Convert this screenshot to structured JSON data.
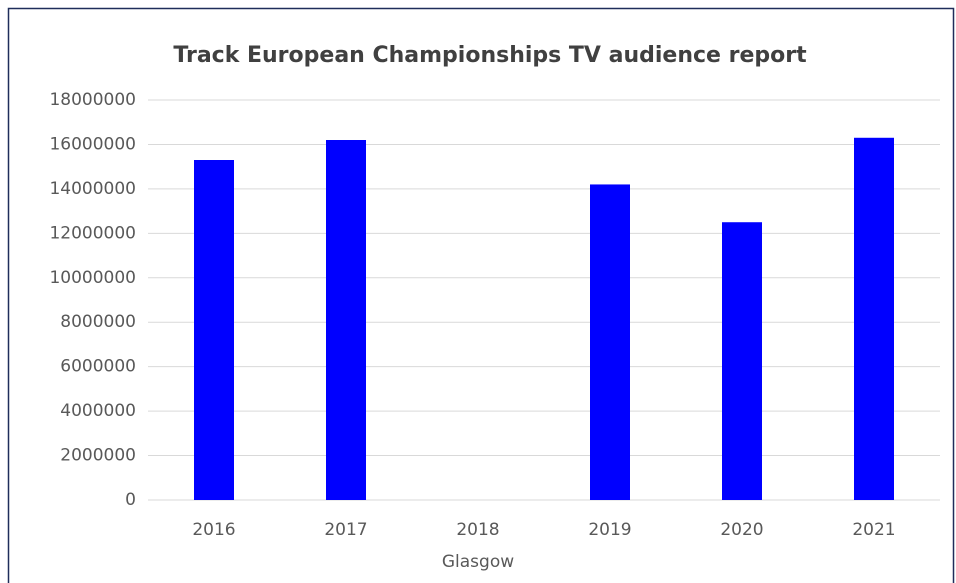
{
  "chart_data": {
    "type": "bar",
    "title": "Track European Championships TV audience report",
    "categories": [
      "2016",
      "2017",
      "2018",
      "2019",
      "2020",
      "2021"
    ],
    "category_notes": [
      null,
      null,
      "Glasgow",
      null,
      null,
      null
    ],
    "values": [
      15300000,
      16200000,
      null,
      14200000,
      12500000,
      16300000
    ],
    "color": "#0000ff",
    "ylim": [
      0,
      18000000
    ],
    "yticks": [
      0,
      2000000,
      4000000,
      6000000,
      8000000,
      10000000,
      12000000,
      14000000,
      16000000,
      18000000
    ],
    "grid": true
  }
}
